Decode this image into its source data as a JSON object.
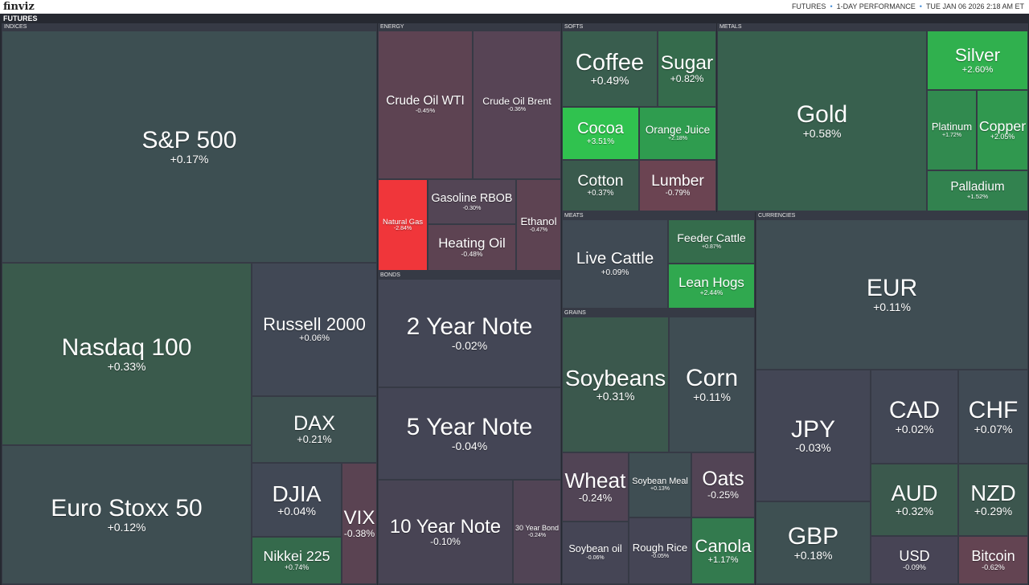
{
  "header": {
    "logo": "finviz",
    "section": "FUTURES",
    "breadcrumb": [
      "FUTURES",
      "1-DAY PERFORMANCE",
      "TUE JAN 06 2026 2:18 AM ET"
    ]
  },
  "groups": [
    {
      "name": "INDICES",
      "tiles": [
        {
          "name": "S&P 500",
          "change": "+0.17%",
          "color": "#3d4f52"
        },
        {
          "name": "Nasdaq 100",
          "change": "+0.33%",
          "color": "#3a5a4c"
        },
        {
          "name": "Euro Stoxx 50",
          "change": "+0.12%",
          "color": "#3e4e52"
        },
        {
          "name": "Russell 2000",
          "change": "+0.06%",
          "color": "#414855"
        },
        {
          "name": "DAX",
          "change": "+0.21%",
          "color": "#3e5151"
        },
        {
          "name": "DJIA",
          "change": "+0.04%",
          "color": "#414855"
        },
        {
          "name": "Nikkei 225",
          "change": "+0.74%",
          "color": "#356a4c"
        },
        {
          "name": "VIX",
          "change": "-0.38%",
          "color": "#5a4352"
        }
      ]
    },
    {
      "name": "ENERGY",
      "tiles": [
        {
          "name": "Crude Oil WTI",
          "change": "-0.45%",
          "color": "#5d4352"
        },
        {
          "name": "Crude Oil Brent",
          "change": "-0.36%",
          "color": "#574455"
        },
        {
          "name": "Natural Gas",
          "change": "-2.84%",
          "color": "#f0363a"
        },
        {
          "name": "Gasoline RBOB",
          "change": "-0.30%",
          "color": "#534555"
        },
        {
          "name": "Heating Oil",
          "change": "-0.48%",
          "color": "#5d4352"
        },
        {
          "name": "Ethanol",
          "change": "-0.47%",
          "color": "#5d4352"
        }
      ]
    },
    {
      "name": "BONDS",
      "tiles": [
        {
          "name": "2 Year Note",
          "change": "-0.02%",
          "color": "#434655"
        },
        {
          "name": "5 Year Note",
          "change": "-0.04%",
          "color": "#444555"
        },
        {
          "name": "10 Year Note",
          "change": "-0.10%",
          "color": "#484454"
        },
        {
          "name": "30 Year Bond",
          "change": "-0.24%",
          "color": "#514455"
        }
      ]
    },
    {
      "name": "SOFTS",
      "tiles": [
        {
          "name": "Coffee",
          "change": "+0.49%",
          "color": "#395d4e"
        },
        {
          "name": "Sugar",
          "change": "+0.82%",
          "color": "#356b4c"
        },
        {
          "name": "Cocoa",
          "change": "+3.51%",
          "color": "#30c24f"
        },
        {
          "name": "Orange Juice",
          "change": "+2.18%",
          "color": "#2f9c4f"
        },
        {
          "name": "Cotton",
          "change": "+0.37%",
          "color": "#3a5a4d"
        },
        {
          "name": "Lumber",
          "change": "-0.79%",
          "color": "#6b4452"
        }
      ]
    },
    {
      "name": "METALS",
      "tiles": [
        {
          "name": "Gold",
          "change": "+0.58%",
          "color": "#38604e"
        },
        {
          "name": "Silver",
          "change": "+2.60%",
          "color": "#30b04e"
        },
        {
          "name": "Platinum",
          "change": "+1.72%",
          "color": "#318a4f"
        },
        {
          "name": "Copper",
          "change": "+2.05%",
          "color": "#30984f"
        },
        {
          "name": "Palladium",
          "change": "+1.52%",
          "color": "#32824f"
        }
      ]
    },
    {
      "name": "MEATS",
      "tiles": [
        {
          "name": "Live Cattle",
          "change": "+0.09%",
          "color": "#404a54"
        },
        {
          "name": "Feeder Cattle",
          "change": "+0.87%",
          "color": "#356c4c"
        },
        {
          "name": "Lean Hogs",
          "change": "+2.44%",
          "color": "#30a84f"
        }
      ]
    },
    {
      "name": "GRAINS",
      "tiles": [
        {
          "name": "Soybeans",
          "change": "+0.31%",
          "color": "#3b584d"
        },
        {
          "name": "Corn",
          "change": "+0.11%",
          "color": "#3f4d53"
        },
        {
          "name": "Wheat",
          "change": "-0.24%",
          "color": "#514455"
        },
        {
          "name": "Soybean Meal",
          "change": "+0.13%",
          "color": "#3f4e53"
        },
        {
          "name": "Oats",
          "change": "-0.25%",
          "color": "#524455"
        },
        {
          "name": "Soybean oil",
          "change": "-0.06%",
          "color": "#454555"
        },
        {
          "name": "Rough Rice",
          "change": "-0.05%",
          "color": "#454555"
        },
        {
          "name": "Canola",
          "change": "+1.17%",
          "color": "#337a4e"
        }
      ]
    },
    {
      "name": "CURRENCIES",
      "tiles": [
        {
          "name": "EUR",
          "change": "+0.11%",
          "color": "#3f4d53"
        },
        {
          "name": "JPY",
          "change": "-0.03%",
          "color": "#434655"
        },
        {
          "name": "GBP",
          "change": "+0.18%",
          "color": "#3e5052"
        },
        {
          "name": "CAD",
          "change": "+0.02%",
          "color": "#424755"
        },
        {
          "name": "CHF",
          "change": "+0.07%",
          "color": "#404a54"
        },
        {
          "name": "AUD",
          "change": "+0.32%",
          "color": "#3b594d"
        },
        {
          "name": "NZD",
          "change": "+0.29%",
          "color": "#3c564e"
        },
        {
          "name": "USD",
          "change": "-0.09%",
          "color": "#474455"
        },
        {
          "name": "Bitcoin",
          "change": "-0.62%",
          "color": "#634452"
        }
      ]
    }
  ]
}
